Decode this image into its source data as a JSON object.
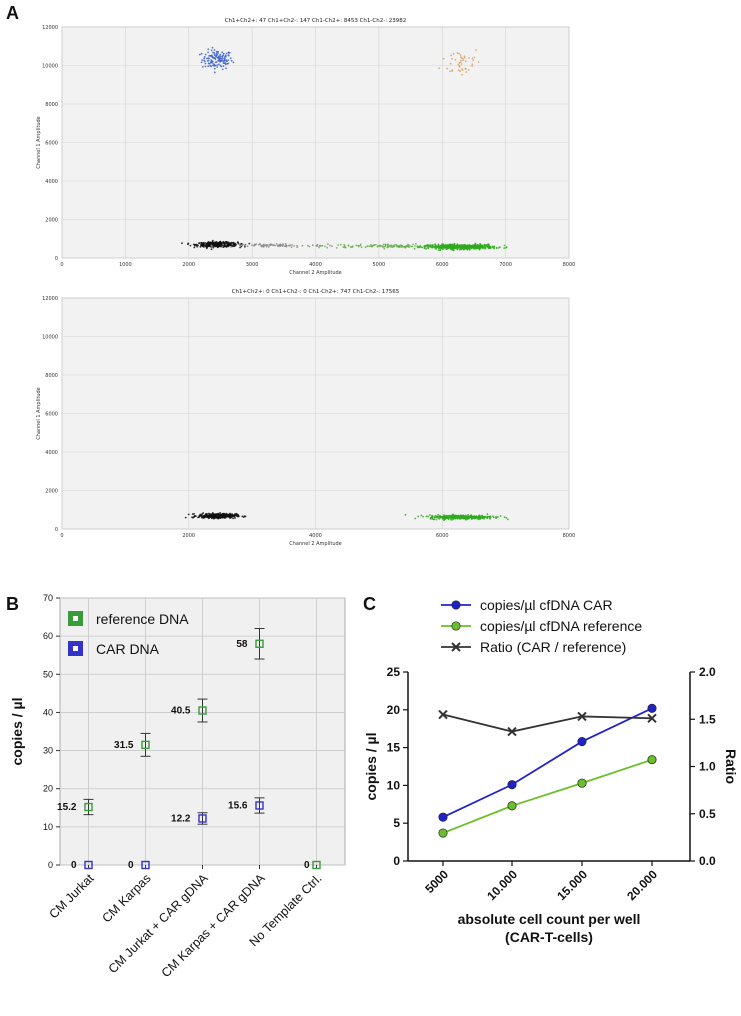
{
  "panels": {
    "a": "A",
    "b": "B",
    "c": "C"
  },
  "chart_data": [
    {
      "type": "scatter",
      "panel": "A (top)",
      "title": "Ch1+Ch2+: 47  Ch1+Ch2-: 147  Ch1-Ch2+: 8453  Ch1-Ch2-: 23982",
      "xlabel": "Channel 2 Amplitude",
      "ylabel": "Channel 1 Amplitude",
      "xlim": [
        0,
        8000
      ],
      "ylim": [
        0,
        12000
      ],
      "xticks": [
        0,
        1000,
        2000,
        3000,
        4000,
        5000,
        6000,
        7000,
        8000
      ],
      "yticks": [
        0,
        2000,
        4000,
        6000,
        8000,
        10000,
        12000
      ],
      "clusters": [
        {
          "name": "Ch1+Ch2-",
          "color": "#3a5fcd",
          "x": 2450,
          "y": 10300,
          "sx": 120,
          "sy": 250,
          "n": 130
        },
        {
          "name": "Ch1+Ch2+",
          "color": "#d9a066",
          "x": 6300,
          "y": 10200,
          "sx": 160,
          "sy": 400,
          "n": 45
        },
        {
          "name": "Ch1-Ch2- dense",
          "color": "#111111",
          "x": 2450,
          "y": 700,
          "sx": 160,
          "sy": 60,
          "n": 400
        },
        {
          "name": "Ch1-Ch2- tail",
          "color": "#8a8a8a",
          "x": 3300,
          "y": 650,
          "sx": 450,
          "sy": 50,
          "n": 80
        },
        {
          "name": "Ch1-Ch2+ tail",
          "color": "#6ab04c",
          "x": 5200,
          "y": 620,
          "sx": 600,
          "sy": 50,
          "n": 160
        },
        {
          "name": "Ch1-Ch2+ dense",
          "color": "#2eaa1c",
          "x": 6300,
          "y": 580,
          "sx": 260,
          "sy": 60,
          "n": 500
        }
      ]
    },
    {
      "type": "scatter",
      "panel": "A (bottom)",
      "title": "Ch1+Ch2+: 0  Ch1+Ch2-: 0  Ch1-Ch2+: 747  Ch1-Ch2-: 17565",
      "xlabel": "Channel 2 Amplitude",
      "ylabel": "Channel 1 Amplitude",
      "xlim": [
        0,
        8000
      ],
      "ylim": [
        0,
        12000
      ],
      "xticks": [
        0,
        2000,
        4000,
        6000,
        8000
      ],
      "yticks": [
        0,
        2000,
        4000,
        6000,
        8000,
        10000,
        12000
      ],
      "clusters": [
        {
          "name": "Ch1-Ch2-",
          "color": "#111111",
          "x": 2450,
          "y": 680,
          "sx": 150,
          "sy": 60,
          "n": 350
        },
        {
          "name": "Ch1-Ch2+",
          "color": "#2eaa1c",
          "x": 6300,
          "y": 620,
          "sx": 260,
          "sy": 55,
          "n": 350
        }
      ]
    },
    {
      "type": "scatter",
      "panel": "B",
      "ylabel": "copies / µl",
      "ylim": [
        0,
        70
      ],
      "yticks": [
        0,
        10,
        20,
        30,
        40,
        50,
        60,
        70
      ],
      "categories": [
        "CM Jurkat",
        "CM Karpas",
        "CM Jurkat + CAR gDNA",
        "CM Karpas + CAR gDNA",
        "No Template Ctrl."
      ],
      "series": [
        {
          "name": "reference DNA",
          "color": "#3a9b3a",
          "values": [
            15.2,
            31.5,
            40.5,
            58,
            0
          ],
          "labels": [
            "15.2",
            "31.5",
            "40.5",
            "58",
            "0"
          ],
          "err": [
            2,
            3,
            3,
            4,
            0
          ]
        },
        {
          "name": "CAR DNA",
          "color": "#3333cc",
          "values": [
            0,
            0,
            12.2,
            15.6,
            null
          ],
          "labels": [
            "0",
            "0",
            "12.2",
            "15.6",
            ""
          ],
          "err": [
            0,
            0,
            1.5,
            2,
            0
          ]
        }
      ]
    },
    {
      "type": "line",
      "panel": "C",
      "xlabel": "absolute cell count per well",
      "xlabel2": "(CAR-T-cells)",
      "ylabel": "copies / µl",
      "y2label": "Ratio",
      "categories": [
        "5000",
        "10.000",
        "15.000",
        "20.000"
      ],
      "ylim": [
        0,
        25
      ],
      "yticks": [
        "0",
        "5",
        "10",
        "15",
        "20",
        "25"
      ],
      "y2lim": [
        0,
        2
      ],
      "y2ticks": [
        "0.0",
        "0.5",
        "1.0",
        "1.5",
        "2.0"
      ],
      "series": [
        {
          "name": "copies/µl cfDNA CAR",
          "color": "#2222cc",
          "marker": "circle",
          "axis": "left",
          "values": [
            5.8,
            10.1,
            15.8,
            20.2
          ]
        },
        {
          "name": "copies/µl cfDNA reference",
          "color": "#6abf2a",
          "marker": "circle",
          "axis": "left",
          "values": [
            3.7,
            7.3,
            10.3,
            13.4
          ]
        },
        {
          "name": "Ratio (CAR / reference)",
          "color": "#333333",
          "marker": "x",
          "axis": "right",
          "values": [
            1.55,
            1.37,
            1.53,
            1.51
          ]
        }
      ]
    }
  ]
}
